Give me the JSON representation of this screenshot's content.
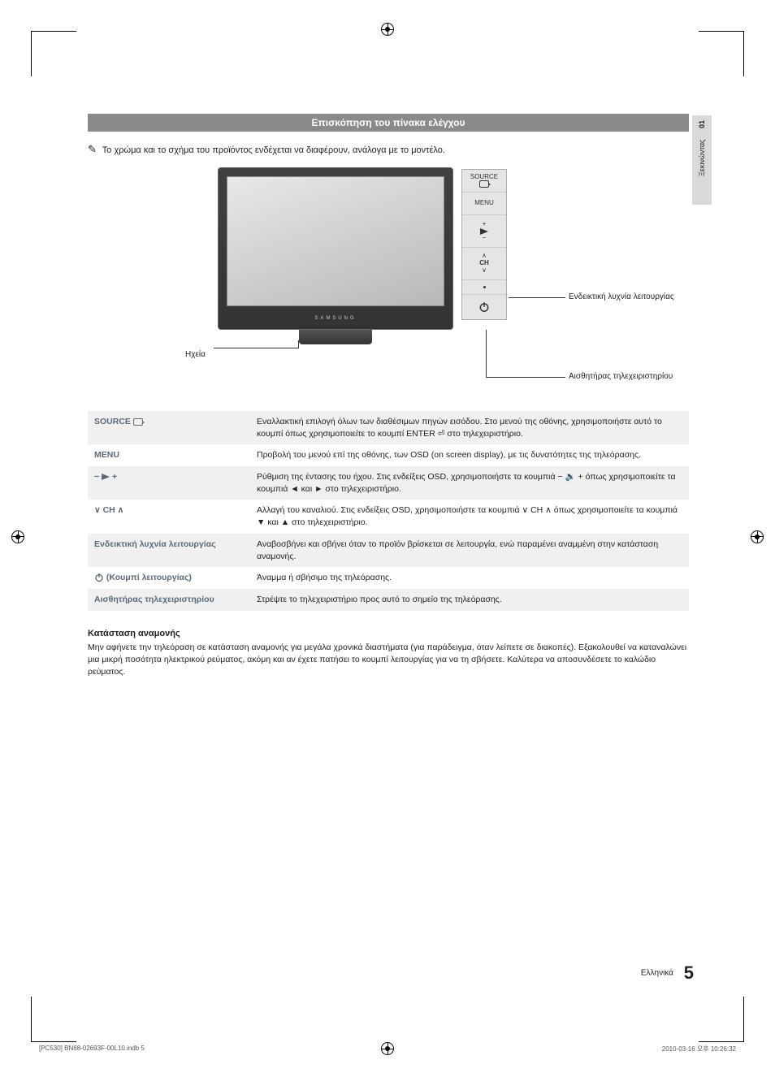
{
  "registration_marks": true,
  "side_tab": {
    "number": "01",
    "label": "Ξεκινώντας"
  },
  "header_title": "Επισκόπηση του πίνακα ελέγχου",
  "note_text": "Το χρώμα και το σχήμα του προϊόντος ενδέχεται να διαφέρουν, ανάλογα με το μοντέλο.",
  "diagram": {
    "tv_brand": "SAMSUNG",
    "speaker_label": "Ηχεία",
    "buttons": {
      "source": "SOURCE",
      "menu": "MENU",
      "ch": "CH"
    },
    "callout_power": "Ενδεικτική λυχνία λειτουργίας",
    "callout_sensor": "Αισθητήρας τηλεχειριστηρίου"
  },
  "controls": [
    {
      "label_text": "SOURCE",
      "label_icon": "enter",
      "desc": "Εναλλακτική επιλογή όλων των διαθέσιμων πηγών εισόδου. Στο μενού της οθόνης, χρησιμοποιήστε αυτό το κουμπί όπως χρησιμοποιείτε το κουμπί ENTER ⏎ στο τηλεχειριστήριο."
    },
    {
      "label_text": "MENU",
      "desc": "Προβολή του μενού επί της οθόνης, των OSD (on screen display), με τις δυνατότητες της τηλεόρασης."
    },
    {
      "label_text": "− 🔉 +",
      "label_icon": "vol",
      "desc": "Ρύθμιση της έντασης του ήχου. Στις ενδείξεις OSD, χρησιμοποιήστε τα κουμπιά − 🔉 + όπως χρησιμοποιείτε τα κουμπιά ◄ και ► στο τηλεχειριστήριο."
    },
    {
      "label_text": "∨ CH ∧",
      "desc": "Αλλαγή του καναλιού. Στις ενδείξεις OSD, χρησιμοποιήστε τα κουμπιά ∨ CH ∧ όπως χρησιμοποιείτε τα κουμπιά ▼ και ▲ στο τηλεχειριστήριο."
    },
    {
      "label_text": "Ενδεικτική λυχνία λειτουργίας",
      "desc": "Αναβοσβήνει και σβήνει όταν το προϊόν βρίσκεται σε λειτουργία, ενώ παραμένει αναμμένη στην κατάσταση αναμονής."
    },
    {
      "label_text": "⏻ (Κουμπί λειτουργίας)",
      "label_icon": "power",
      "desc": "Άναμμα ή σβήσιμο της τηλεόρασης."
    },
    {
      "label_text": "Αισθητήρας τηλεχειριστηρίου",
      "desc": "Στρέψτε το τηλεχειριστήριο προς αυτό το σημείο της τηλεόρασης."
    }
  ],
  "standby": {
    "title": "Κατάσταση αναμονής",
    "text": "Μην αφήνετε την τηλεόραση σε κατάσταση αναμονής για μεγάλα χρονικά διαστήματα (για παράδειγμα, όταν λείπετε σε διακοπές). Εξακολουθεί να καταναλώνει μια μικρή ποσότητα ηλεκτρικού ρεύματος, ακόμη και αν έχετε πατήσει το κουμπί λειτουργίας για να τη σβήσετε. Καλύτερα να αποσυνδέσετε το καλώδιο ρεύματος."
  },
  "footer": {
    "lang": "Ελληνικά",
    "page": "5"
  },
  "print": {
    "left": "[PC530] BN68-02693F-00L10.indb   5",
    "right": "2010-03-16   오후 10:26:32"
  }
}
